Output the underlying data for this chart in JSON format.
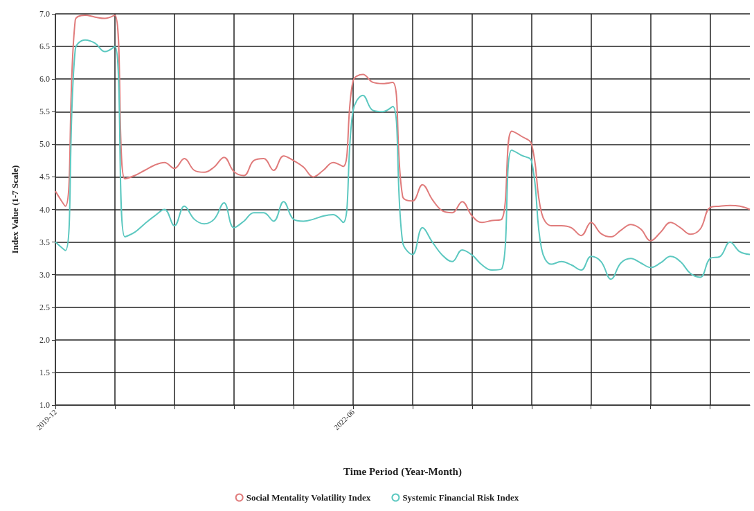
{
  "chart_data": {
    "type": "line",
    "xlabel": "Time Period (Year-Month)",
    "ylabel": "Index Value (1-7 Scale)",
    "categories": [
      "2019-12",
      null,
      null,
      null,
      null,
      null,
      null,
      null,
      null,
      null,
      null,
      null,
      null,
      null,
      null,
      null,
      null,
      null,
      null,
      null,
      null,
      null,
      null,
      null,
      null,
      null,
      null,
      null,
      null,
      null,
      "2022-06",
      null,
      null,
      null,
      null,
      null,
      null,
      null,
      null,
      null,
      null,
      null,
      null,
      null,
      null,
      null,
      null,
      null,
      null,
      null,
      null,
      null,
      null,
      null,
      null,
      null,
      null,
      null,
      null,
      null,
      null,
      null,
      null,
      null,
      null,
      null,
      null,
      null,
      null,
      null,
      null
    ],
    "series": [
      {
        "name": "Social Mentality Volatility Index",
        "color": "#e07b7b",
        "values": [
          4.28,
          4.05,
          6.9,
          6.98,
          6.95,
          6.93,
          6.98,
          4.47,
          4.52,
          4.6,
          4.68,
          4.72,
          4.63,
          4.78,
          4.6,
          4.57,
          4.65,
          4.8,
          4.58,
          4.52,
          4.75,
          4.78,
          4.6,
          4.82,
          4.75,
          4.65,
          4.5,
          4.6,
          4.72,
          4.66,
          5.97,
          6.07,
          5.95,
          5.93,
          5.95,
          4.2,
          4.13,
          4.38,
          4.15,
          3.98,
          3.95,
          4.12,
          3.9,
          3.8,
          3.83,
          3.85,
          5.2,
          5.12,
          5.0,
          3.95,
          3.75,
          3.75,
          3.72,
          3.6,
          3.8,
          3.63,
          3.58,
          3.68,
          3.77,
          3.7,
          3.52,
          3.65,
          3.8,
          3.72,
          3.62,
          3.7,
          4.03,
          4.05,
          4.06,
          4.05,
          4.0
        ]
      },
      {
        "name": "Systemic Financial Risk Index",
        "color": "#5cc8c0",
        "values": [
          3.5,
          3.37,
          6.45,
          6.6,
          6.55,
          6.42,
          6.5,
          3.58,
          3.65,
          3.78,
          3.9,
          4.0,
          3.75,
          4.05,
          3.85,
          3.78,
          3.85,
          4.1,
          3.72,
          3.82,
          3.95,
          3.95,
          3.82,
          4.12,
          3.85,
          3.82,
          3.85,
          3.9,
          3.92,
          3.8,
          5.51,
          5.75,
          5.52,
          5.5,
          5.58,
          3.5,
          3.31,
          3.72,
          3.5,
          3.3,
          3.2,
          3.38,
          3.3,
          3.15,
          3.07,
          3.09,
          4.91,
          4.83,
          4.74,
          3.4,
          3.16,
          3.2,
          3.15,
          3.07,
          3.28,
          3.2,
          2.93,
          3.18,
          3.25,
          3.18,
          3.11,
          3.18,
          3.28,
          3.2,
          3.02,
          2.96,
          3.25,
          3.28,
          3.5,
          3.35,
          3.31
        ]
      }
    ],
    "ylim": [
      1,
      7
    ],
    "yticks": [
      {
        "value": 1,
        "label": "1.0"
      },
      {
        "value": 1.5,
        "label": "1.5"
      },
      {
        "value": 2,
        "label": "2.0"
      },
      {
        "value": 2.5,
        "label": "2.5"
      },
      {
        "value": 3,
        "label": "3.0"
      },
      {
        "value": 3.5,
        "label": "3.5"
      },
      {
        "value": 4,
        "label": "4.0"
      },
      {
        "value": 4.5,
        "label": "4.5"
      },
      {
        "value": 5,
        "label": "5.0"
      },
      {
        "value": 5.5,
        "label": "5.5"
      },
      {
        "value": 6,
        "label": "6.0"
      },
      {
        "value": 6.5,
        "label": "6.5"
      },
      {
        "value": 7,
        "label": "7.0"
      }
    ],
    "grid": true,
    "legend": "bottom",
    "marker": "none",
    "line_style": "solid"
  }
}
